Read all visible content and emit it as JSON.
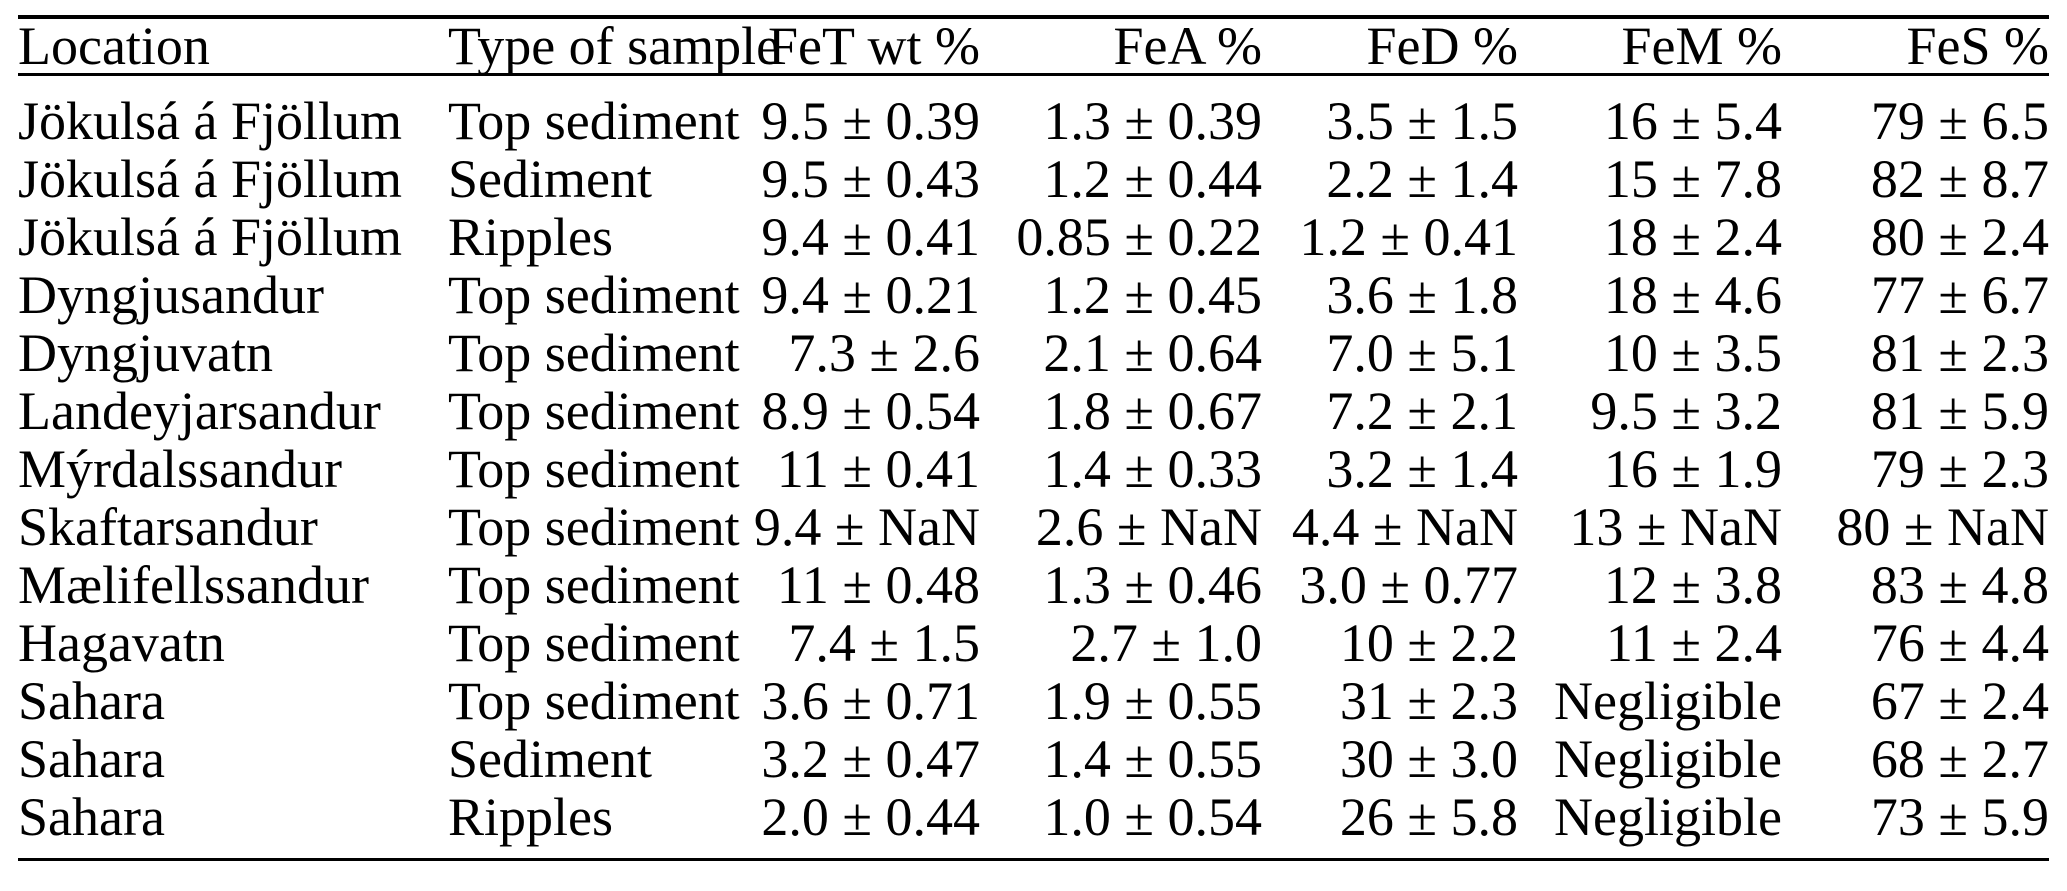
{
  "table": {
    "columns": [
      {
        "key": "location",
        "label": "Location",
        "align": "left"
      },
      {
        "key": "sample-type",
        "label": "Type of sample",
        "align": "left"
      },
      {
        "key": "fet",
        "label": "FeT wt %",
        "align": "right"
      },
      {
        "key": "fea",
        "label": "FeA %",
        "align": "right"
      },
      {
        "key": "fed",
        "label": "FeD %",
        "align": "right"
      },
      {
        "key": "fem",
        "label": "FeM %",
        "align": "right"
      },
      {
        "key": "fes",
        "label": "FeS %",
        "align": "right"
      }
    ],
    "rows": [
      [
        "Jökulsá á Fjöllum",
        "Top sediment",
        "9.5 ± 0.39",
        "1.3 ± 0.39",
        "3.5 ± 1.5",
        "16 ± 5.4",
        "79 ± 6.5"
      ],
      [
        "Jökulsá á Fjöllum",
        "Sediment",
        "9.5 ± 0.43",
        "1.2 ± 0.44",
        "2.2 ± 1.4",
        "15 ± 7.8",
        "82 ± 8.7"
      ],
      [
        "Jökulsá á Fjöllum",
        "Ripples",
        "9.4 ± 0.41",
        "0.85 ± 0.22",
        "1.2 ± 0.41",
        "18 ± 2.4",
        "80 ± 2.4"
      ],
      [
        "Dyngjusandur",
        "Top sediment",
        "9.4 ± 0.21",
        "1.2 ± 0.45",
        "3.6 ± 1.8",
        "18 ± 4.6",
        "77 ± 6.7"
      ],
      [
        "Dyngjuvatn",
        "Top sediment",
        "7.3 ± 2.6",
        "2.1 ± 0.64",
        "7.0 ± 5.1",
        "10 ± 3.5",
        "81 ± 2.3"
      ],
      [
        "Landeyjarsandur",
        "Top sediment",
        "8.9 ± 0.54",
        "1.8 ± 0.67",
        "7.2 ± 2.1",
        "9.5 ± 3.2",
        "81 ± 5.9"
      ],
      [
        "Mýrdalssandur",
        "Top sediment",
        "11 ± 0.41",
        "1.4 ± 0.33",
        "3.2 ± 1.4",
        "16 ± 1.9",
        "79 ± 2.3"
      ],
      [
        "Skaftarsandur",
        "Top sediment",
        "9.4 ± NaN",
        "2.6 ± NaN",
        "4.4 ± NaN",
        "13 ± NaN",
        "80 ± NaN"
      ],
      [
        "Mælifellssandur",
        "Top sediment",
        "11 ± 0.48",
        "1.3 ± 0.46",
        "3.0 ± 0.77",
        "12 ± 3.8",
        "83 ± 4.8"
      ],
      [
        "Hagavatn",
        "Top sediment",
        "7.4 ± 1.5",
        "2.7 ± 1.0",
        "10 ± 2.2",
        "11 ± 2.4",
        "76 ± 4.4"
      ],
      [
        "Sahara",
        "Top sediment",
        "3.6 ± 0.71",
        "1.9 ± 0.55",
        "31 ± 2.3",
        "Negligible",
        "67 ± 2.4"
      ],
      [
        "Sahara",
        "Sediment",
        "3.2 ± 0.47",
        "1.4 ± 0.55",
        "30 ± 3.0",
        "Negligible",
        "68 ± 2.7"
      ],
      [
        "Sahara",
        "Ripples",
        "2.0 ± 0.44",
        "1.0 ± 0.54",
        "26 ± 5.8",
        "Negligible",
        "73 ± 5.9"
      ]
    ],
    "colors": {
      "text": "#000000",
      "rule": "#000000",
      "background": "#ffffff"
    }
  }
}
